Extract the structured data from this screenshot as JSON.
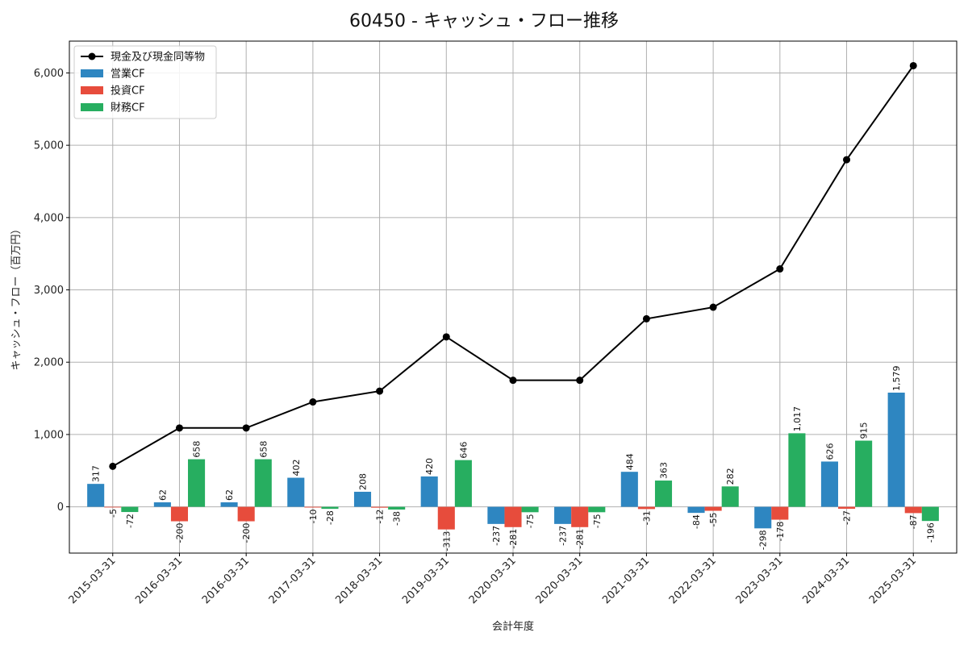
{
  "chart_data": {
    "type": "bar",
    "title": "60450 - キャッシュ・フロー推移",
    "xlabel": "会計年度",
    "ylabel": "キャッシュ・フロー（百万円）",
    "ylim": [
      -640,
      6440
    ],
    "yticks": [
      0,
      1000,
      2000,
      3000,
      4000,
      5000,
      6000
    ],
    "ytick_labels": [
      "0",
      "1,000",
      "2,000",
      "3,000",
      "4,000",
      "5,000",
      "6,000"
    ],
    "grid": true,
    "legend_position": "top-left",
    "categories": [
      "2015-03-31",
      "2016-03-31",
      "2016-03-31",
      "2017-03-31",
      "2018-03-31",
      "2019-03-31",
      "2020-03-31",
      "2020-03-31",
      "2021-03-31",
      "2022-03-31",
      "2023-03-31",
      "2024-03-31",
      "2025-03-31"
    ],
    "series": [
      {
        "name": "営業CF",
        "kind": "bar",
        "color": "#2e86c1",
        "values": [
          317,
          62,
          62,
          402,
          208,
          420,
          -237,
          -237,
          484,
          -84,
          -298,
          626,
          1579
        ],
        "labels": [
          "317",
          "62",
          "62",
          "402",
          "208",
          "420",
          "-237",
          "-237",
          "484",
          "-84",
          "-298",
          "626",
          "1,579"
        ]
      },
      {
        "name": "投資CF",
        "kind": "bar",
        "color": "#e74c3c",
        "values": [
          -5,
          -200,
          -200,
          -10,
          -12,
          -313,
          -281,
          -281,
          -31,
          -55,
          -178,
          -27,
          -87
        ],
        "labels": [
          "-5",
          "-200",
          "-200",
          "-10",
          "-12",
          "-313",
          "-281",
          "-281",
          "-31",
          "-55",
          "-178",
          "-27",
          "-87"
        ]
      },
      {
        "name": "財務CF",
        "kind": "bar",
        "color": "#27ae60",
        "values": [
          -72,
          658,
          658,
          -28,
          -38,
          646,
          -75,
          -75,
          363,
          282,
          1017,
          915,
          -196
        ],
        "labels": [
          "-72",
          "658",
          "658",
          "-28",
          "-38",
          "646",
          "-75",
          "-75",
          "363",
          "282",
          "1,017",
          "915",
          "-196"
        ]
      },
      {
        "name": "現金及び現金同等物",
        "kind": "line",
        "color": "#000000",
        "values": [
          560,
          1090,
          1090,
          1450,
          1600,
          2350,
          1750,
          1750,
          2600,
          2760,
          3290,
          4800,
          6100
        ]
      }
    ]
  }
}
